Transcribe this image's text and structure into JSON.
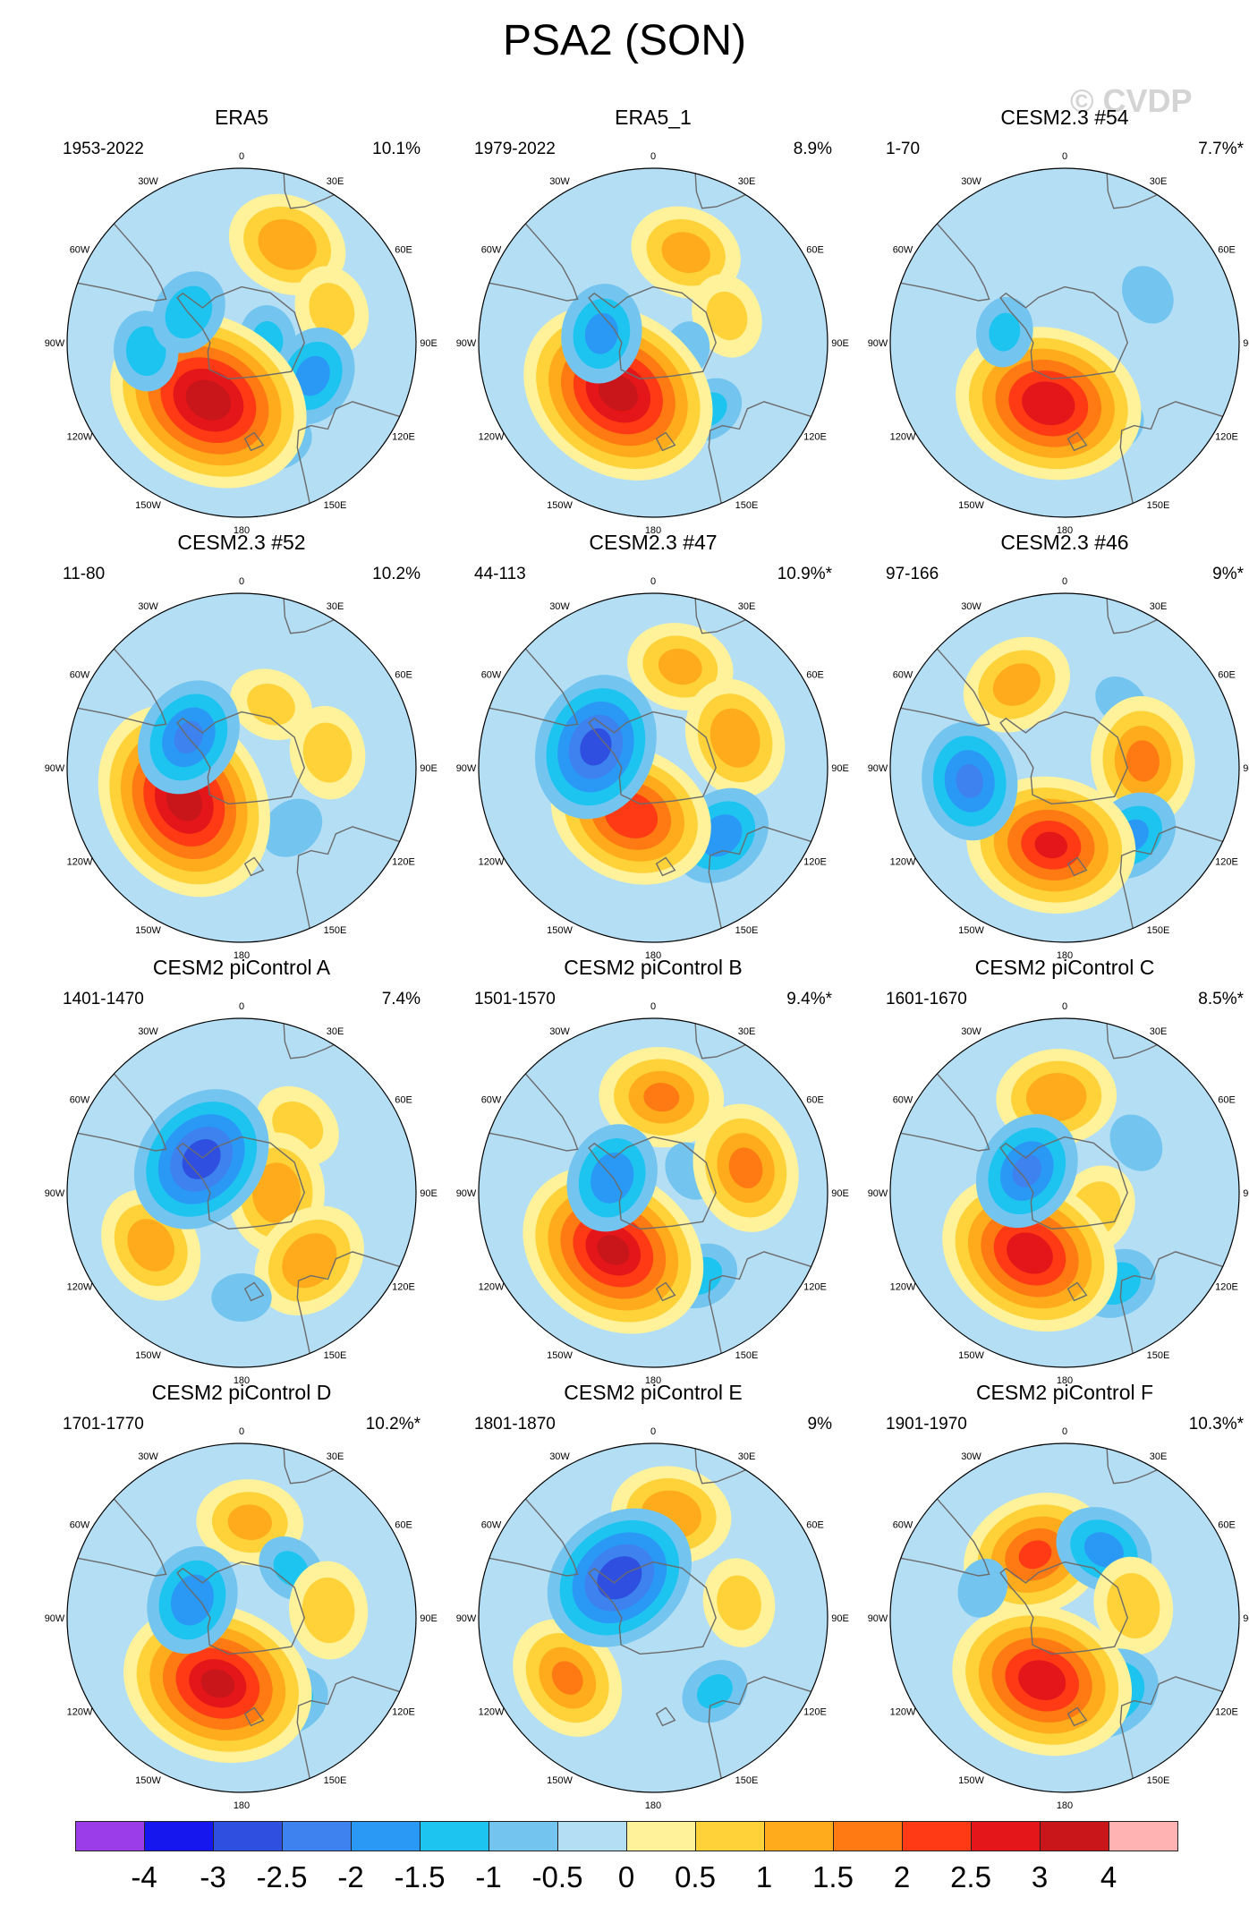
{
  "title": "PSA2 (SON)",
  "watermark": "© CVDP",
  "chart_data": {
    "type": "contour-map-panels",
    "projection": "south-polar-stereographic",
    "variable": "PSA2 pattern",
    "season": "SON",
    "lon_labels": [
      "0",
      "30E",
      "60E",
      "90E",
      "120E",
      "150E",
      "180",
      "150W",
      "120W",
      "90W",
      "60W",
      "30W"
    ],
    "contour_levels": [
      -4,
      -3,
      -2.5,
      -2,
      -1.5,
      -1,
      -0.5,
      0,
      0.5,
      1,
      1.5,
      2,
      2.5,
      3,
      4
    ],
    "colorbar_colors": [
      "#9c3dea",
      "#1616ee",
      "#2f4fe0",
      "#3d82ee",
      "#2a99f5",
      "#1ec4f0",
      "#73c5ef",
      "#b4def4",
      "#fff29a",
      "#ffd23a",
      "#ffab1c",
      "#ff7a12",
      "#ff3a14",
      "#e5161a",
      "#c8161b",
      "#ffb3b3"
    ],
    "panels": [
      {
        "title": "ERA5",
        "years": "1953-2022",
        "pct": "10.1%",
        "blobs": [
          {
            "lon": 25,
            "r": 0.62,
            "v": 1.4
          },
          {
            "lon": 70,
            "r": 0.55,
            "v": 0.7
          },
          {
            "lon": 85,
            "r": 0.15,
            "v": -1.0
          },
          {
            "lon": 115,
            "r": 0.45,
            "v": -1.6
          },
          {
            "lon": 160,
            "r": 0.6,
            "v": -1.0
          },
          {
            "lon": 210,
            "r": 0.38,
            "v": 3.3
          },
          {
            "lon": 265,
            "r": 0.55,
            "v": -1.2
          },
          {
            "lon": 300,
            "r": 0.35,
            "v": -1.3
          }
        ]
      },
      {
        "title": "ERA5_1",
        "years": "1979-2022",
        "pct": "8.9%",
        "blobs": [
          {
            "lon": 20,
            "r": 0.55,
            "v": 1.2
          },
          {
            "lon": 70,
            "r": 0.45,
            "v": 0.6
          },
          {
            "lon": 100,
            "r": 0.2,
            "v": -0.7
          },
          {
            "lon": 140,
            "r": 0.5,
            "v": -1.0
          },
          {
            "lon": 215,
            "r": 0.35,
            "v": 3.2
          },
          {
            "lon": 280,
            "r": 0.3,
            "v": -1.6
          }
        ]
      },
      {
        "title": "CESM2.3 #54",
        "years": "1-70",
        "pct": "7.7%*",
        "blobs": [
          {
            "lon": 60,
            "r": 0.55,
            "v": -0.8
          },
          {
            "lon": 150,
            "r": 0.55,
            "v": -0.9
          },
          {
            "lon": 195,
            "r": 0.36,
            "v": 2.9
          },
          {
            "lon": 280,
            "r": 0.35,
            "v": -1.0
          }
        ]
      },
      {
        "title": "CESM2.3 #52",
        "years": "11-80",
        "pct": "10.2%",
        "blobs": [
          {
            "lon": 25,
            "r": 0.4,
            "v": 0.6
          },
          {
            "lon": 80,
            "r": 0.5,
            "v": 0.8
          },
          {
            "lon": 140,
            "r": 0.45,
            "v": -0.9
          },
          {
            "lon": 240,
            "r": 0.38,
            "v": 3.2
          },
          {
            "lon": 300,
            "r": 0.35,
            "v": -2.0
          }
        ]
      },
      {
        "title": "CESM2.3 #47",
        "years": "44-113",
        "pct": "10.9%*",
        "blobs": [
          {
            "lon": 15,
            "r": 0.6,
            "v": 1.1
          },
          {
            "lon": 70,
            "r": 0.5,
            "v": 1.4
          },
          {
            "lon": 135,
            "r": 0.55,
            "v": -1.7
          },
          {
            "lon": 205,
            "r": 0.3,
            "v": 2.4
          },
          {
            "lon": 290,
            "r": 0.35,
            "v": -2.6
          }
        ]
      },
      {
        "title": "CESM2.3 #46",
        "years": "97-166",
        "pct": "9%*",
        "blobs": [
          {
            "lon": 330,
            "r": 0.55,
            "v": 1.2
          },
          {
            "lon": 40,
            "r": 0.5,
            "v": -0.7
          },
          {
            "lon": 85,
            "r": 0.45,
            "v": 1.6
          },
          {
            "lon": 135,
            "r": 0.55,
            "v": -1.5
          },
          {
            "lon": 190,
            "r": 0.45,
            "v": 2.5
          },
          {
            "lon": 262,
            "r": 0.55,
            "v": -2.0
          }
        ]
      },
      {
        "title": "CESM2 piControl A",
        "years": "1401-1470",
        "pct": "7.4%",
        "blobs": [
          {
            "lon": 40,
            "r": 0.5,
            "v": 0.7
          },
          {
            "lon": 90,
            "r": 0.2,
            "v": 1.4
          },
          {
            "lon": 135,
            "r": 0.55,
            "v": 1.4
          },
          {
            "lon": 180,
            "r": 0.6,
            "v": -0.8
          },
          {
            "lon": 240,
            "r": 0.6,
            "v": 1.3
          },
          {
            "lon": 310,
            "r": 0.3,
            "v": -2.7
          }
        ]
      },
      {
        "title": "CESM2 piControl B",
        "years": "1501-1570",
        "pct": "9.4%*",
        "blobs": [
          {
            "lon": 5,
            "r": 0.55,
            "v": 1.5
          },
          {
            "lon": 60,
            "r": 0.25,
            "v": -0.8
          },
          {
            "lon": 75,
            "r": 0.55,
            "v": 1.6
          },
          {
            "lon": 150,
            "r": 0.55,
            "v": -1.1
          },
          {
            "lon": 215,
            "r": 0.4,
            "v": 3.0
          },
          {
            "lon": 290,
            "r": 0.25,
            "v": -1.8
          }
        ]
      },
      {
        "title": "CESM2 piControl C",
        "years": "1601-1670",
        "pct": "8.5%*",
        "blobs": [
          {
            "lon": 355,
            "r": 0.55,
            "v": 1.4
          },
          {
            "lon": 55,
            "r": 0.5,
            "v": -0.8
          },
          {
            "lon": 120,
            "r": 0.2,
            "v": 0.8
          },
          {
            "lon": 150,
            "r": 0.6,
            "v": -1.2
          },
          {
            "lon": 210,
            "r": 0.4,
            "v": 2.8
          },
          {
            "lon": 300,
            "r": 0.25,
            "v": -2.0
          }
        ]
      },
      {
        "title": "CESM2 piControl D",
        "years": "1701-1770",
        "pct": "10.2%*",
        "blobs": [
          {
            "lon": 5,
            "r": 0.55,
            "v": 1.1
          },
          {
            "lon": 45,
            "r": 0.4,
            "v": -1.0
          },
          {
            "lon": 85,
            "r": 0.5,
            "v": 0.9
          },
          {
            "lon": 150,
            "r": 0.55,
            "v": -1.2
          },
          {
            "lon": 200,
            "r": 0.4,
            "v": 3.0
          },
          {
            "lon": 290,
            "r": 0.3,
            "v": -1.8
          }
        ]
      },
      {
        "title": "CESM2 piControl E",
        "years": "1801-1870",
        "pct": "9%",
        "blobs": [
          {
            "lon": 10,
            "r": 0.6,
            "v": 1.4
          },
          {
            "lon": 80,
            "r": 0.5,
            "v": 0.7
          },
          {
            "lon": 140,
            "r": 0.55,
            "v": -1.0
          },
          {
            "lon": 235,
            "r": 0.6,
            "v": 1.5
          },
          {
            "lon": 320,
            "r": 0.3,
            "v": -2.8
          }
        ]
      },
      {
        "title": "CESM2 piControl F",
        "years": "1901-1970",
        "pct": "10.3%*",
        "blobs": [
          {
            "lon": 335,
            "r": 0.4,
            "v": 2.0
          },
          {
            "lon": 30,
            "r": 0.45,
            "v": -1.6
          },
          {
            "lon": 80,
            "r": 0.4,
            "v": 0.9
          },
          {
            "lon": 150,
            "r": 0.5,
            "v": -1.7
          },
          {
            "lon": 200,
            "r": 0.38,
            "v": 2.8
          },
          {
            "lon": 290,
            "r": 0.5,
            "v": -0.8
          }
        ]
      }
    ]
  }
}
